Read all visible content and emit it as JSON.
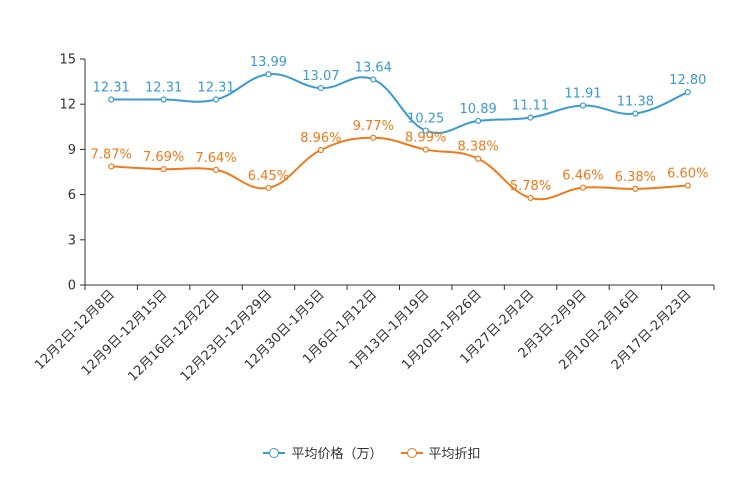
{
  "chart_data": {
    "type": "line",
    "title": "",
    "xlabel": "",
    "ylabel": "",
    "ylim": [
      0,
      15
    ],
    "yticks": [
      "0",
      "3",
      "6",
      "9",
      "12",
      "15"
    ],
    "categories": [
      "12月2日-12月8日",
      "12月9日-12月15日",
      "12月16日-12月22日",
      "12月23日-12月29日",
      "12月30日-1月5日",
      "1月6日-1月12日",
      "1月13日-1月19日",
      "1月20日-1月26日",
      "1月27日-2月2日",
      "2月3日-2月9日",
      "2月10日-2月16日",
      "2月17日-2月23日"
    ],
    "series": [
      {
        "name": "平均价格（万）",
        "color": "#3a9bd0",
        "values": [
          12.31,
          12.31,
          12.31,
          13.99,
          13.07,
          13.64,
          10.25,
          10.89,
          11.11,
          11.91,
          11.38,
          12.8
        ],
        "labels": [
          "12.31",
          "12.31",
          "12.31",
          "13.99",
          "13.07",
          "13.64",
          "10.25",
          "10.89",
          "11.11",
          "11.91",
          "11.38",
          "12.80"
        ]
      },
      {
        "name": "平均折扣",
        "color": "#f07a1a",
        "values": [
          7.87,
          7.69,
          7.64,
          6.45,
          8.96,
          9.77,
          8.99,
          8.38,
          5.78,
          6.46,
          6.38,
          6.6
        ],
        "labels": [
          "7.87%",
          "7.69%",
          "7.64%",
          "6.45%",
          "8.96%",
          "9.77%",
          "8.99%",
          "8.38%",
          "5.78%",
          "6.46%",
          "6.38%",
          "6.60%"
        ]
      }
    ],
    "legend_position": "bottom"
  }
}
